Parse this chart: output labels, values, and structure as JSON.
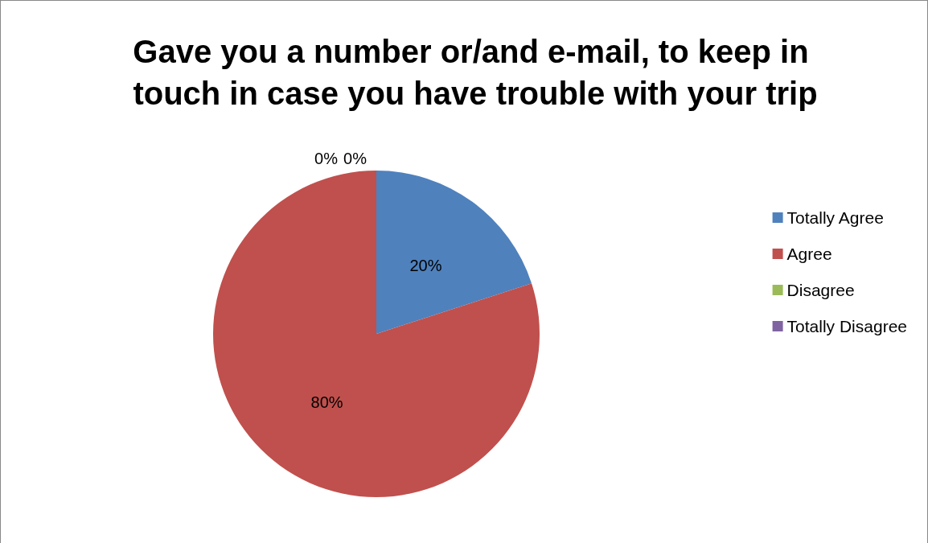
{
  "chart_data": {
    "type": "pie",
    "title": "Gave you a number or/and e-mail, to keep in touch in case you have trouble with your trip",
    "categories": [
      "Totally Agree",
      "Agree",
      "Disagree",
      "Totally Disagree"
    ],
    "values": [
      20,
      80,
      0,
      0
    ],
    "colors": [
      "#4f81bd",
      "#c0504d",
      "#9bbb59",
      "#8064a2"
    ],
    "value_labels": [
      "20%",
      "80%",
      "0%",
      "0%"
    ],
    "legend": "right"
  }
}
